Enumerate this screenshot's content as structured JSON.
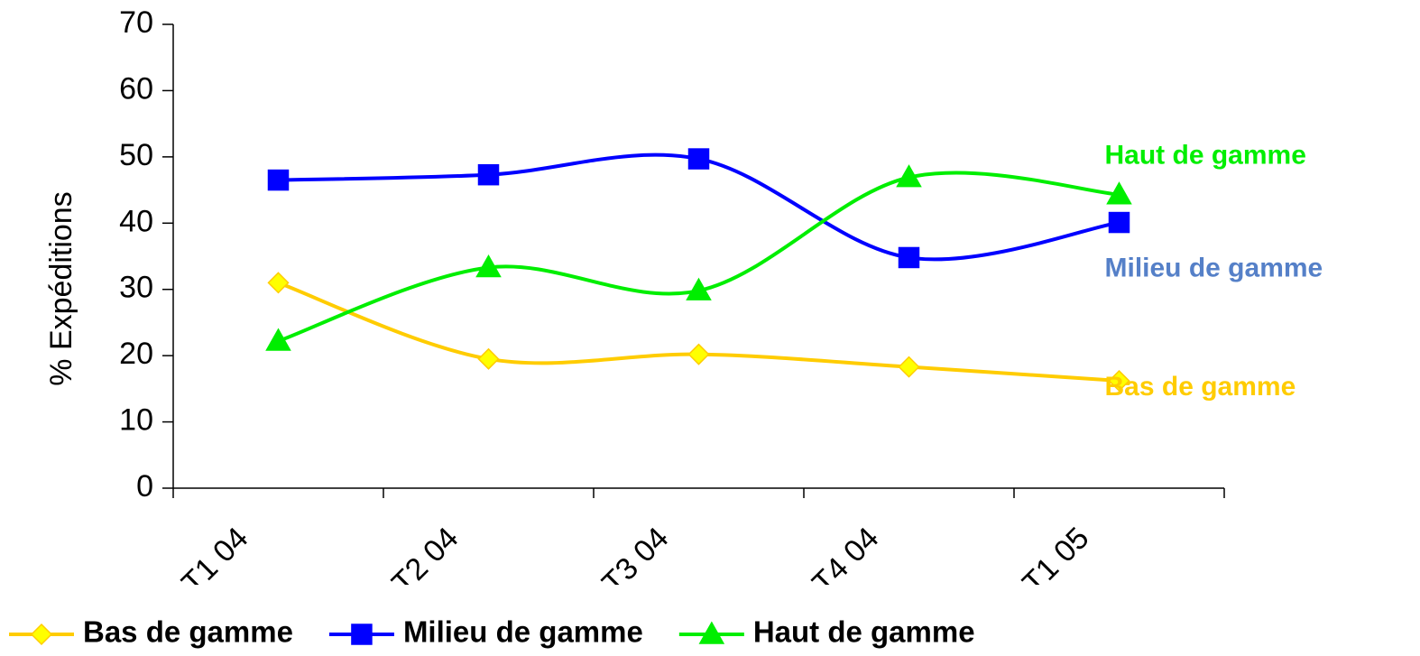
{
  "chart_data": {
    "type": "line",
    "ylabel": "% Expéditions",
    "categories": [
      "T1 04",
      "T2 04",
      "T3 04",
      "T4 04",
      "T1 05"
    ],
    "series": [
      {
        "name": "Bas de gamme",
        "color": "#ffcc00",
        "marker": "diamond",
        "marker_fill": "#ffff00",
        "end_label_color": "#ffcc00",
        "values": [
          31,
          19.5,
          20.2,
          18.3,
          16.2
        ]
      },
      {
        "name": "Milieu de gamme",
        "color": "#0000ff",
        "marker": "square",
        "marker_fill": "#0000ff",
        "end_label_color": "#5580c8",
        "values": [
          46.5,
          47.3,
          49.7,
          34.8,
          40.1
        ]
      },
      {
        "name": "Haut de gamme",
        "color": "#00ee00",
        "marker": "triangle",
        "marker_fill": "#00ee00",
        "end_label_color": "#00ee00",
        "values": [
          22.2,
          33.3,
          29.8,
          46.9,
          44.3
        ]
      }
    ],
    "ylim": [
      0,
      70
    ],
    "yticks": [
      0,
      10,
      20,
      30,
      40,
      50,
      60,
      70
    ],
    "smooth": true,
    "legend": "bottom"
  }
}
